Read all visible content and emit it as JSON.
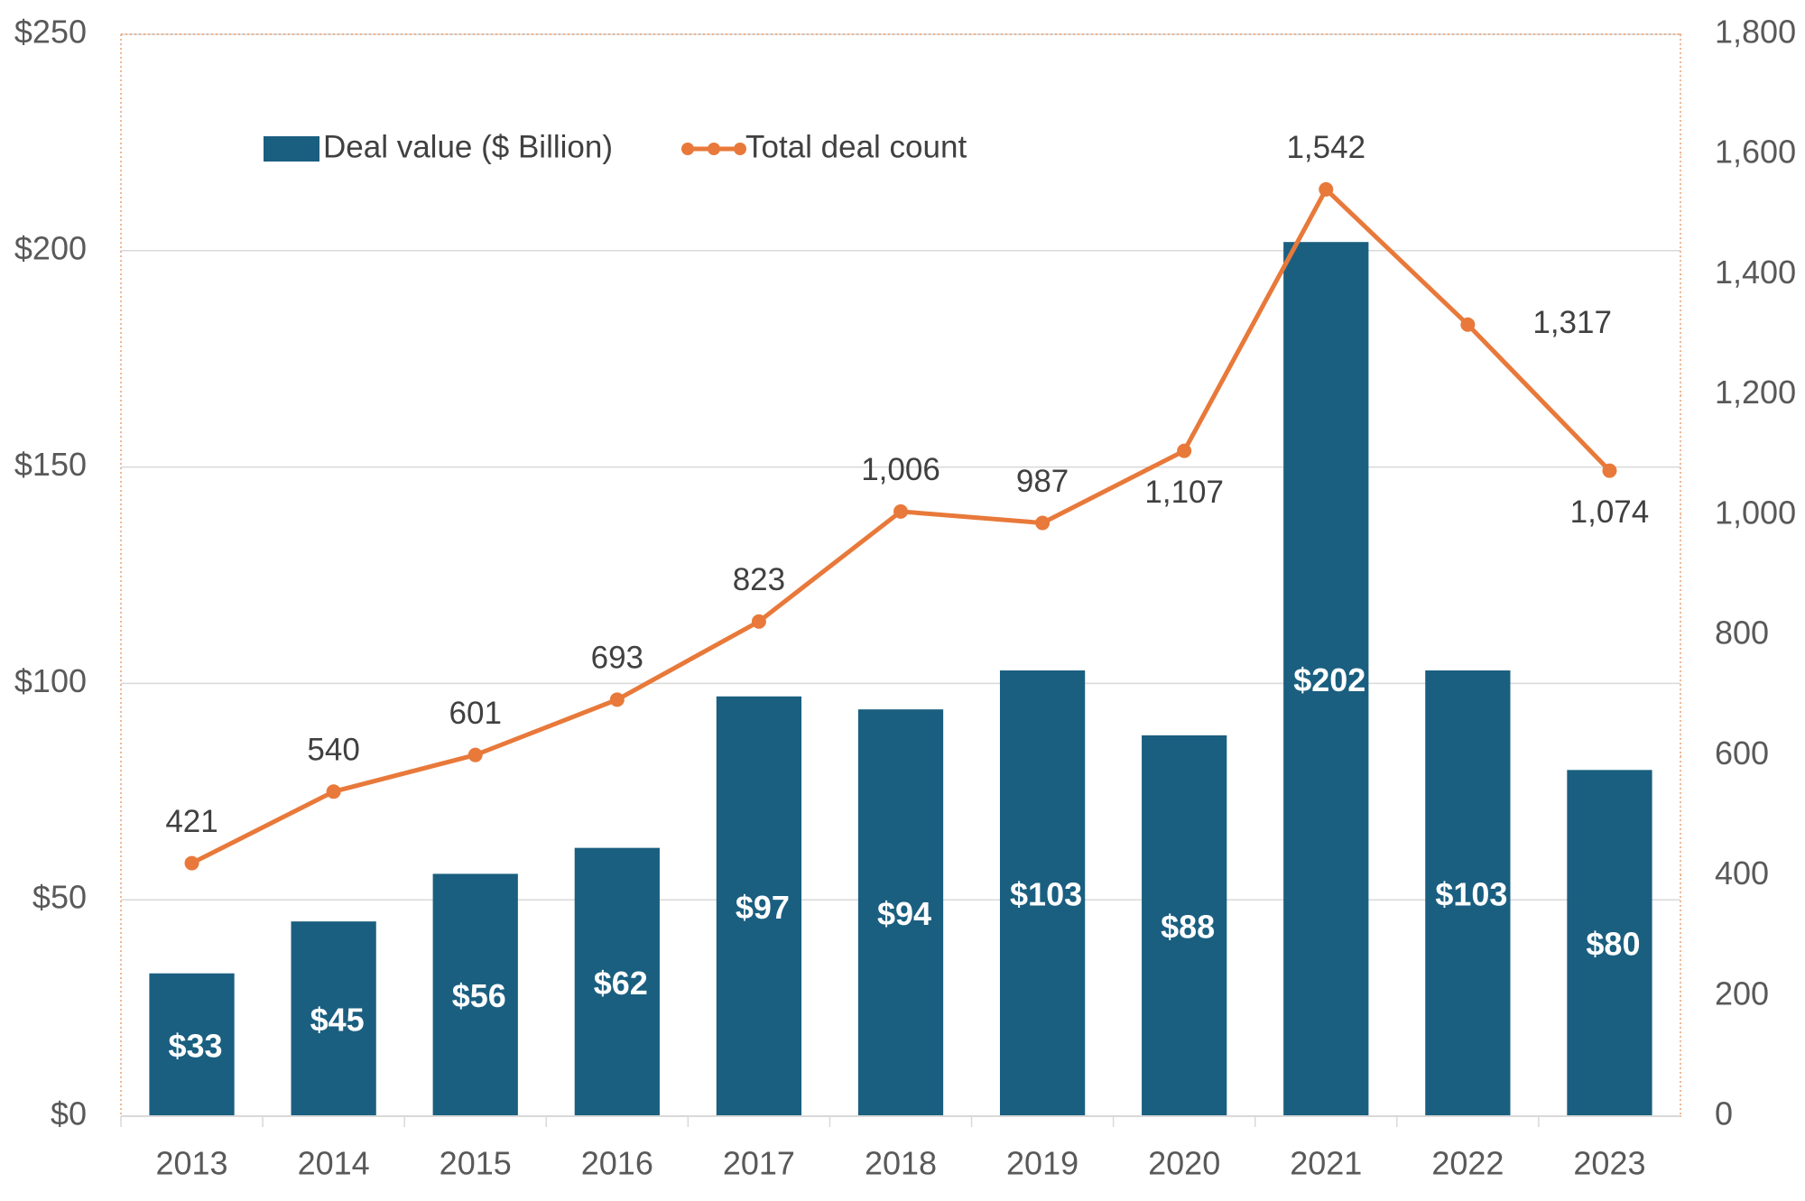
{
  "chart_data": {
    "type": "bar-line",
    "categories": [
      "2013",
      "2014",
      "2015",
      "2016",
      "2017",
      "2018",
      "2019",
      "2020",
      "2021",
      "2022",
      "2023"
    ],
    "series": [
      {
        "name": "Deal value ($ Billion)",
        "type": "bar",
        "color": "#1a5f80",
        "values": [
          33,
          45,
          56,
          62,
          97,
          94,
          103,
          88,
          202,
          103,
          80
        ],
        "value_labels": [
          "$33",
          "$45",
          "$56",
          "$62",
          "$97",
          "$94",
          "$103",
          "$88",
          "$202",
          "$103",
          "$80"
        ]
      },
      {
        "name": "Total deal count",
        "type": "line",
        "axis": "y2",
        "color": "#e8793a",
        "values": [
          421,
          540,
          601,
          693,
          823,
          1006,
          987,
          1107,
          1542,
          1317,
          1074
        ],
        "value_labels": [
          "421",
          "540",
          "601",
          "693",
          "823",
          "1,006",
          "987",
          "1,107",
          "1,542",
          "1,317",
          "1,074"
        ]
      }
    ],
    "ylim": [
      0,
      250
    ],
    "yticks": [
      {
        "value": 0,
        "label": "$0"
      },
      {
        "value": 50,
        "label": "$50"
      },
      {
        "value": 100,
        "label": "$100"
      },
      {
        "value": 150,
        "label": "$150"
      },
      {
        "value": 200,
        "label": "$200"
      },
      {
        "value": 250,
        "label": "$250"
      }
    ],
    "y2lim": [
      0,
      1800
    ],
    "y2ticks": [
      0,
      200,
      400,
      600,
      800,
      {
        "value": 1000,
        "label": "1,000"
      },
      {
        "value": 1200,
        "label": "1,200"
      },
      {
        "value": 1400,
        "label": "1,400"
      },
      {
        "value": 1600,
        "label": "1,600"
      },
      {
        "value": 1800,
        "label": "1,800"
      }
    ],
    "grid": true,
    "legend": "top-left"
  }
}
